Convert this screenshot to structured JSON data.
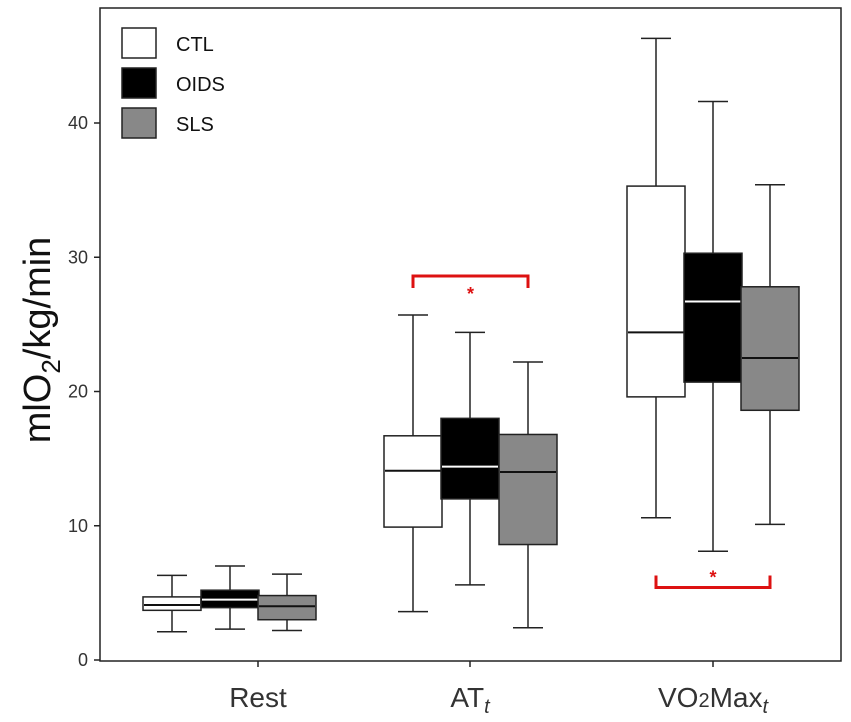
{
  "chart_data": {
    "type": "boxplot",
    "ylabel": {
      "prefix": "mlO",
      "sub": "2",
      "suffix": "/kg/min"
    },
    "ylim": [
      0,
      47
    ],
    "yticks": [
      0,
      10,
      20,
      30,
      40
    ],
    "categories": [
      {
        "label": "Rest"
      },
      {
        "label": "AT",
        "italic_sub": "t"
      },
      {
        "label": "VO",
        "sub": "2",
        "label2": "Max",
        "italic_sub": "t"
      }
    ],
    "series": [
      {
        "name": "CTL",
        "fill": "#ffffff",
        "median_color": "#111111",
        "boxes": [
          {
            "min": 2.1,
            "q1": 3.7,
            "median": 4.1,
            "q3": 4.7,
            "max": 6.3
          },
          {
            "min": 3.6,
            "q1": 9.9,
            "median": 14.1,
            "q3": 16.7,
            "max": 25.7
          },
          {
            "min": 10.6,
            "q1": 19.6,
            "median": 24.4,
            "q3": 35.3,
            "max": 46.3
          }
        ]
      },
      {
        "name": "OIDS",
        "fill": "#000000",
        "median_color": "#ffffff",
        "boxes": [
          {
            "min": 2.3,
            "q1": 3.9,
            "median": 4.5,
            "q3": 5.2,
            "max": 7.0
          },
          {
            "min": 5.6,
            "q1": 12.0,
            "median": 14.4,
            "q3": 18.0,
            "max": 24.4
          },
          {
            "min": 8.1,
            "q1": 20.7,
            "median": 26.7,
            "q3": 30.3,
            "max": 41.6
          }
        ]
      },
      {
        "name": "SLS",
        "fill": "#888888",
        "median_color": "#111111",
        "boxes": [
          {
            "min": 2.2,
            "q1": 3.0,
            "median": 4.0,
            "q3": 4.8,
            "max": 6.4
          },
          {
            "min": 2.4,
            "q1": 8.6,
            "median": 14.0,
            "q3": 16.8,
            "max": 22.2
          },
          {
            "min": 10.1,
            "q1": 18.6,
            "median": 22.5,
            "q3": 27.8,
            "max": 35.4
          }
        ]
      }
    ],
    "significance": [
      {
        "category": 1,
        "from_series": 0,
        "to_series": 2,
        "label": "*",
        "bracket_y": 28.6,
        "direction": "down",
        "color": "#dd1111"
      },
      {
        "category": 2,
        "from_series": 0,
        "to_series": 2,
        "label": "*",
        "bracket_y": 5.4,
        "direction": "up",
        "color": "#dd1111"
      }
    ],
    "legend": {
      "position": "top-left"
    }
  }
}
